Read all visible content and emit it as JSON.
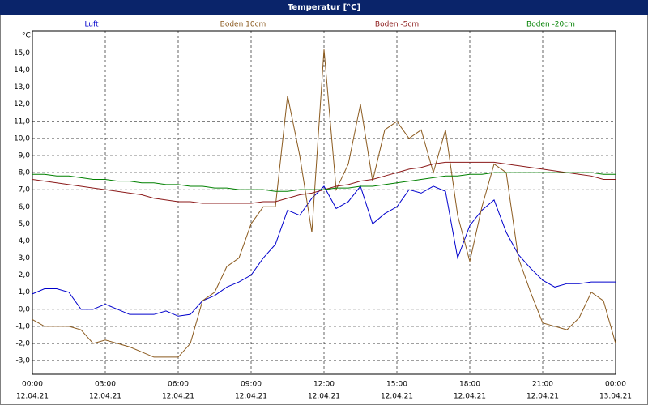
{
  "window_title": "Temperatur [°C]",
  "chart_data": {
    "type": "line",
    "y_unit": "°C",
    "x": [
      0,
      0.5,
      1,
      1.5,
      2,
      2.5,
      3,
      3.5,
      4,
      4.5,
      5,
      5.5,
      6,
      6.5,
      7,
      7.5,
      8,
      8.5,
      9,
      9.5,
      10,
      10.5,
      11,
      11.5,
      12,
      12.5,
      13,
      13.5,
      14,
      14.5,
      15,
      15.5,
      16,
      16.5,
      17,
      17.5,
      18,
      18.5,
      19,
      19.5,
      20,
      20.5,
      21,
      21.5,
      22,
      22.5,
      23,
      23.5,
      24
    ],
    "series": [
      {
        "name": "Luft",
        "color": "#0000cc",
        "values": [
          0.9,
          1.2,
          1.2,
          1.0,
          0.0,
          0.0,
          0.3,
          0.0,
          -0.3,
          -0.3,
          -0.3,
          -0.1,
          -0.4,
          -0.3,
          0.5,
          0.8,
          1.3,
          1.6,
          2.0,
          3.0,
          3.8,
          5.8,
          5.5,
          6.5,
          7.2,
          5.9,
          6.3,
          7.2,
          5.0,
          5.6,
          6.0,
          7.0,
          6.8,
          7.2,
          6.9,
          3.0,
          4.9,
          5.8,
          6.4,
          4.5,
          3.2,
          2.4,
          1.7,
          1.3,
          1.5,
          1.5,
          1.6,
          1.6,
          1.6
        ]
      },
      {
        "name": "Boden 10cm",
        "color": "#8b5a1e",
        "values": [
          -0.6,
          -1.0,
          -1.0,
          -1.0,
          -1.2,
          -2.0,
          -1.8,
          -2.0,
          -2.2,
          -2.5,
          -2.8,
          -2.8,
          -2.8,
          -2.0,
          0.5,
          1.0,
          2.5,
          3.0,
          5.0,
          6.0,
          6.0,
          12.5,
          9.0,
          4.5,
          15.2,
          7.0,
          8.5,
          12.0,
          7.5,
          10.5,
          11.0,
          10.0,
          10.5,
          8.0,
          10.5,
          5.5,
          2.8,
          6.0,
          8.5,
          8.0,
          3.0,
          1.0,
          -0.8,
          -1.0,
          -1.2,
          -0.5,
          1.0,
          0.5,
          -2.0
        ]
      },
      {
        "name": "Boden -5cm",
        "color": "#8b1a1a",
        "values": [
          7.6,
          7.5,
          7.4,
          7.3,
          7.2,
          7.1,
          7.0,
          6.9,
          6.8,
          6.7,
          6.5,
          6.4,
          6.3,
          6.3,
          6.2,
          6.2,
          6.2,
          6.2,
          6.2,
          6.3,
          6.3,
          6.5,
          6.7,
          6.8,
          7.0,
          7.2,
          7.3,
          7.5,
          7.6,
          7.8,
          8.0,
          8.2,
          8.3,
          8.5,
          8.6,
          8.6,
          8.6,
          8.6,
          8.6,
          8.5,
          8.4,
          8.3,
          8.2,
          8.1,
          8.0,
          7.9,
          7.8,
          7.6,
          7.6
        ]
      },
      {
        "name": "Boden -20cm",
        "color": "#008000",
        "values": [
          7.9,
          7.9,
          7.8,
          7.8,
          7.7,
          7.6,
          7.6,
          7.5,
          7.5,
          7.4,
          7.4,
          7.3,
          7.3,
          7.2,
          7.2,
          7.1,
          7.1,
          7.0,
          7.0,
          7.0,
          6.9,
          6.9,
          7.0,
          7.0,
          7.0,
          7.1,
          7.1,
          7.2,
          7.2,
          7.3,
          7.4,
          7.5,
          7.6,
          7.7,
          7.8,
          7.8,
          7.9,
          7.9,
          8.0,
          8.0,
          8.0,
          8.0,
          8.0,
          8.0,
          8.0,
          8.0,
          8.0,
          7.9,
          7.9
        ]
      }
    ],
    "xlim": [
      0,
      24
    ],
    "xticks": [
      {
        "value": 0,
        "label": "00:00"
      },
      {
        "value": 3,
        "label": "03:00"
      },
      {
        "value": 6,
        "label": "06:00"
      },
      {
        "value": 9,
        "label": "09:00"
      },
      {
        "value": 12,
        "label": "12:00"
      },
      {
        "value": 15,
        "label": "15:00"
      },
      {
        "value": 18,
        "label": "18:00"
      },
      {
        "value": 21,
        "label": "21:00"
      },
      {
        "value": 24,
        "label": "00:00"
      }
    ],
    "xtick_dates": [
      "12.04.21",
      "12.04.21",
      "12.04.21",
      "12.04.21",
      "12.04.21",
      "12.04.21",
      "12.04.21",
      "12.04.21",
      "13.04.21"
    ],
    "ylim": [
      -3.8,
      16.3
    ],
    "yticks": [
      {
        "value": -3,
        "label": "-3,0"
      },
      {
        "value": -2,
        "label": "-2,0"
      },
      {
        "value": -1,
        "label": "-1,0"
      },
      {
        "value": 0,
        "label": "0,0"
      },
      {
        "value": 1,
        "label": "1,0"
      },
      {
        "value": 2,
        "label": "2,0"
      },
      {
        "value": 3,
        "label": "3,0"
      },
      {
        "value": 4,
        "label": "4,0"
      },
      {
        "value": 5,
        "label": "5,0"
      },
      {
        "value": 6,
        "label": "6,0"
      },
      {
        "value": 7,
        "label": "7,0"
      },
      {
        "value": 8,
        "label": "8,0"
      },
      {
        "value": 9,
        "label": "9,0"
      },
      {
        "value": 10,
        "label": "10,0"
      },
      {
        "value": 11,
        "label": "11,0"
      },
      {
        "value": 12,
        "label": "12,0"
      },
      {
        "value": 13,
        "label": "13,0"
      },
      {
        "value": 14,
        "label": "14,0"
      },
      {
        "value": 15,
        "label": "15,0"
      }
    ],
    "grid": true
  }
}
